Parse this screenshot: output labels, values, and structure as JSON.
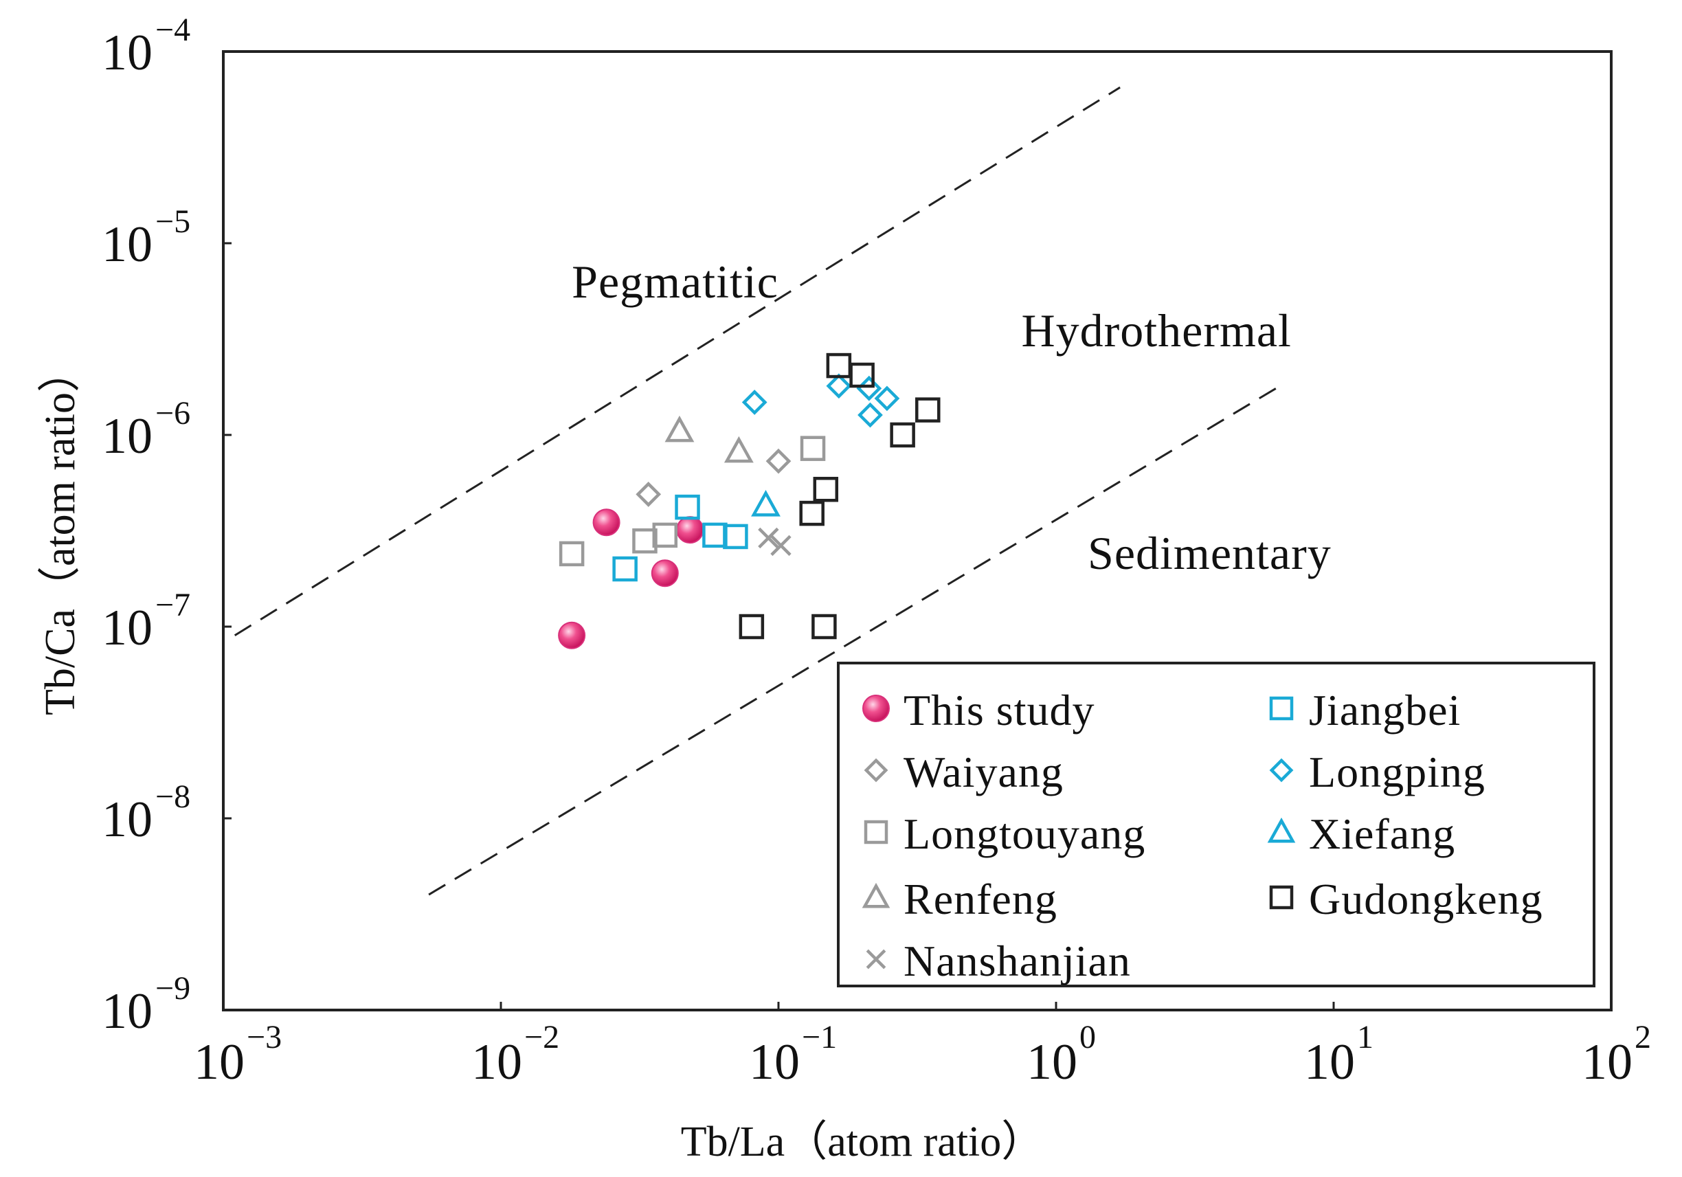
{
  "chart_data": {
    "type": "scatter",
    "x_scale": "log",
    "y_scale": "log",
    "xlim": [
      0.001,
      100
    ],
    "ylim": [
      1e-09,
      0.0001
    ],
    "xlabel": "Tb/La（atom ratio）",
    "ylabel": "Tb/Ca（atom ratio）",
    "x_ticks": [
      {
        "base": "10",
        "exp": "−3",
        "value": 0.001
      },
      {
        "base": "10",
        "exp": "−2",
        "value": 0.01
      },
      {
        "base": "10",
        "exp": "−1",
        "value": 0.1
      },
      {
        "base": "10",
        "exp": "0",
        "value": 1
      },
      {
        "base": "10",
        "exp": "1",
        "value": 10
      },
      {
        "base": "10",
        "exp": "2",
        "value": 100
      }
    ],
    "y_ticks": [
      {
        "base": "10",
        "exp": "−4",
        "value": 0.0001
      },
      {
        "base": "10",
        "exp": "−5",
        "value": 1e-05
      },
      {
        "base": "10",
        "exp": "−6",
        "value": 1e-06
      },
      {
        "base": "10",
        "exp": "−7",
        "value": 1e-07
      },
      {
        "base": "10",
        "exp": "−8",
        "value": 1e-08
      },
      {
        "base": "10",
        "exp": "−9",
        "value": 1e-09
      }
    ],
    "regions": [
      {
        "label": "Pegmatitic",
        "x": 0.018,
        "y": 5.2e-06
      },
      {
        "label": "Hydrothermal",
        "x": 0.75,
        "y": 2.9e-06
      },
      {
        "label": "Sedimentary",
        "x": 1.3,
        "y": 2e-07
      }
    ],
    "boundary_lines": [
      {
        "name": "pegmatitic-hydrothermal",
        "points": [
          [
            0.0011,
            9e-08
          ],
          [
            1.7,
            6.5e-05
          ]
        ]
      },
      {
        "name": "hydrothermal-sedimentary",
        "points": [
          [
            0.0055,
            4e-09
          ],
          [
            6.2,
            1.75e-06
          ]
        ]
      }
    ],
    "series": [
      {
        "name": "This study",
        "marker": "sphere",
        "color": "#e8287a",
        "points": [
          [
            0.018,
            9e-08
          ],
          [
            0.024,
            3.5e-07
          ],
          [
            0.039,
            1.9e-07
          ],
          [
            0.048,
            3.2e-07
          ]
        ]
      },
      {
        "name": "Waiyang",
        "marker": "diamond",
        "color": "#9a9a9a",
        "points": [
          [
            0.034,
            4.9e-07
          ],
          [
            0.1,
            7.3e-07
          ]
        ]
      },
      {
        "name": "Longtouyang",
        "marker": "square",
        "color": "#9a9a9a",
        "points": [
          [
            0.018,
            2.4e-07
          ],
          [
            0.033,
            2.8e-07
          ],
          [
            0.039,
            3e-07
          ],
          [
            0.133,
            8.5e-07
          ]
        ]
      },
      {
        "name": "Renfeng",
        "marker": "triangle",
        "color": "#9a9a9a",
        "points": [
          [
            0.044,
            1.05e-06
          ],
          [
            0.072,
            8.2e-07
          ]
        ]
      },
      {
        "name": "Nanshanjian",
        "marker": "cross",
        "color": "#9a9a9a",
        "points": [
          [
            0.092,
            2.9e-07
          ],
          [
            0.102,
            2.65e-07
          ]
        ]
      },
      {
        "name": "Jiangbei",
        "marker": "square",
        "color": "#1aaad6",
        "points": [
          [
            0.028,
            2e-07
          ],
          [
            0.047,
            4.2e-07
          ],
          [
            0.059,
            3e-07
          ],
          [
            0.07,
            2.95e-07
          ]
        ]
      },
      {
        "name": "Longping",
        "marker": "diamond",
        "color": "#1aaad6",
        "points": [
          [
            0.082,
            1.48e-06
          ],
          [
            0.165,
            1.8e-06
          ],
          [
            0.212,
            1.75e-06
          ],
          [
            0.214,
            1.27e-06
          ],
          [
            0.246,
            1.55e-06
          ]
        ]
      },
      {
        "name": "Xiefang",
        "marker": "triangle",
        "color": "#1aaad6",
        "points": [
          [
            0.09,
            4.3e-07
          ]
        ]
      },
      {
        "name": "Gudongkeng",
        "marker": "square",
        "color": "#222222",
        "points": [
          [
            0.165,
            2.3e-06
          ],
          [
            0.2,
            2.05e-06
          ],
          [
            0.345,
            1.35e-06
          ],
          [
            0.28,
            1e-06
          ],
          [
            0.148,
            5.2e-07
          ],
          [
            0.132,
            3.9e-07
          ],
          [
            0.08,
            1e-07
          ],
          [
            0.146,
            1e-07
          ]
        ]
      }
    ],
    "legend": {
      "position": "bottom-right",
      "columns": [
        [
          "This study",
          "Waiyang",
          "Longtouyang",
          "Renfeng",
          "Nanshanjian"
        ],
        [
          "Jiangbei",
          "Longping",
          "Xiefang",
          "Gudongkeng"
        ]
      ]
    }
  }
}
